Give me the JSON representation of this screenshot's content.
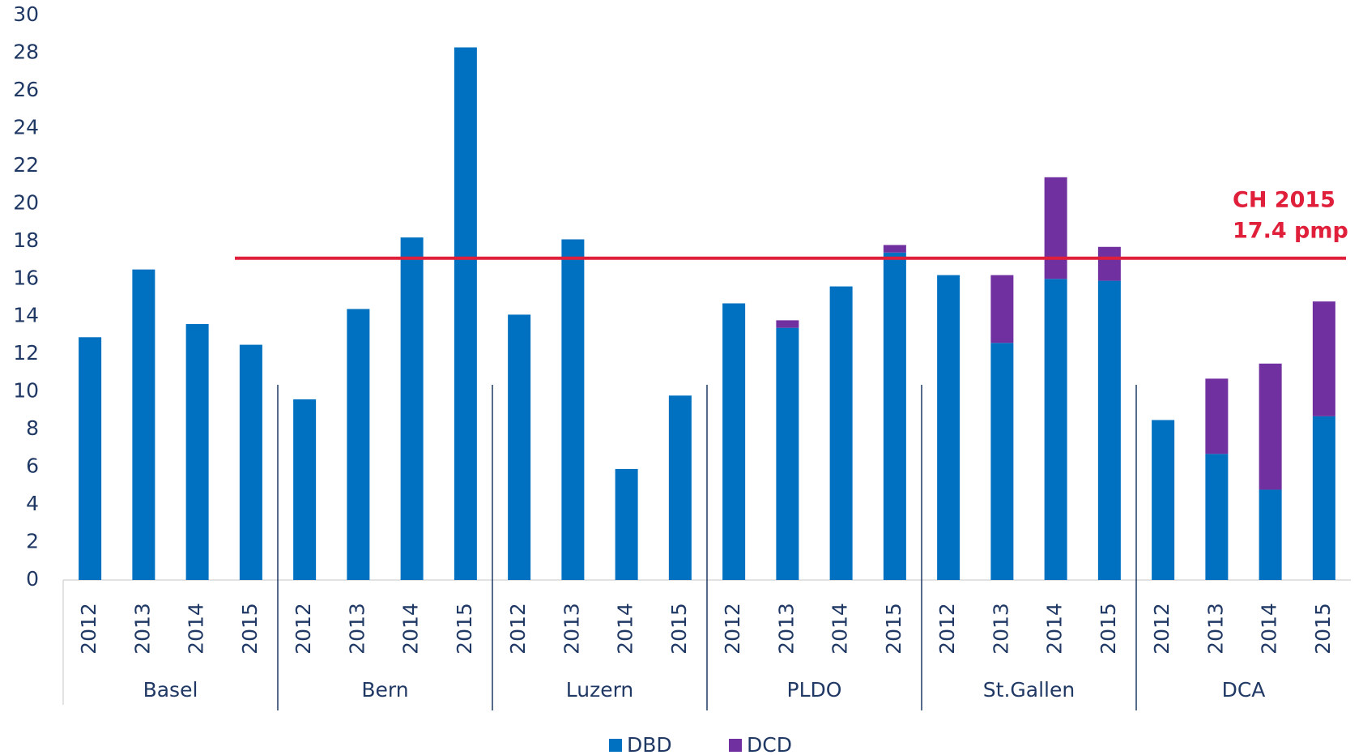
{
  "chart_data": {
    "type": "stacked_bar",
    "groups": [
      {
        "name": "Basel",
        "categories": [
          "2012",
          "2013",
          "2014",
          "2015"
        ]
      },
      {
        "name": "Bern",
        "categories": [
          "2012",
          "2013",
          "2014",
          "2015"
        ]
      },
      {
        "name": "Luzern",
        "categories": [
          "2012",
          "2013",
          "2014",
          "2015"
        ]
      },
      {
        "name": "PLDO",
        "categories": [
          "2012",
          "2013",
          "2014",
          "2015"
        ]
      },
      {
        "name": "St.Gallen",
        "categories": [
          "2012",
          "2013",
          "2014",
          "2015"
        ]
      },
      {
        "name": "DCA",
        "categories": [
          "2012",
          "2013",
          "2014",
          "2015"
        ]
      }
    ],
    "series": [
      {
        "name": "DBD",
        "color": "#0070c0",
        "values": [
          12.9,
          16.5,
          13.6,
          12.5,
          9.6,
          14.4,
          18.2,
          28.3,
          14.1,
          18.1,
          5.9,
          9.8,
          14.7,
          13.4,
          15.6,
          17.4,
          16.2,
          12.6,
          16.0,
          15.9,
          8.5,
          6.7,
          4.8,
          8.7
        ]
      },
      {
        "name": "DCD",
        "color": "#7030a0",
        "values": [
          0,
          0,
          0,
          0,
          0,
          0,
          0,
          0,
          0,
          0,
          0,
          0,
          0,
          0.4,
          0,
          0.4,
          0,
          3.6,
          5.4,
          1.8,
          0,
          4.0,
          6.7,
          6.1
        ]
      }
    ],
    "ylim": [
      0,
      30
    ],
    "yticks": [
      0,
      2,
      4,
      6,
      8,
      10,
      12,
      14,
      16,
      18,
      20,
      22,
      24,
      26,
      28,
      30
    ],
    "reference_line": {
      "value": 17.1,
      "color": "#e0203a",
      "label": [
        "CH 2015",
        "17.4 pmp"
      ]
    },
    "legend": "bottom"
  }
}
